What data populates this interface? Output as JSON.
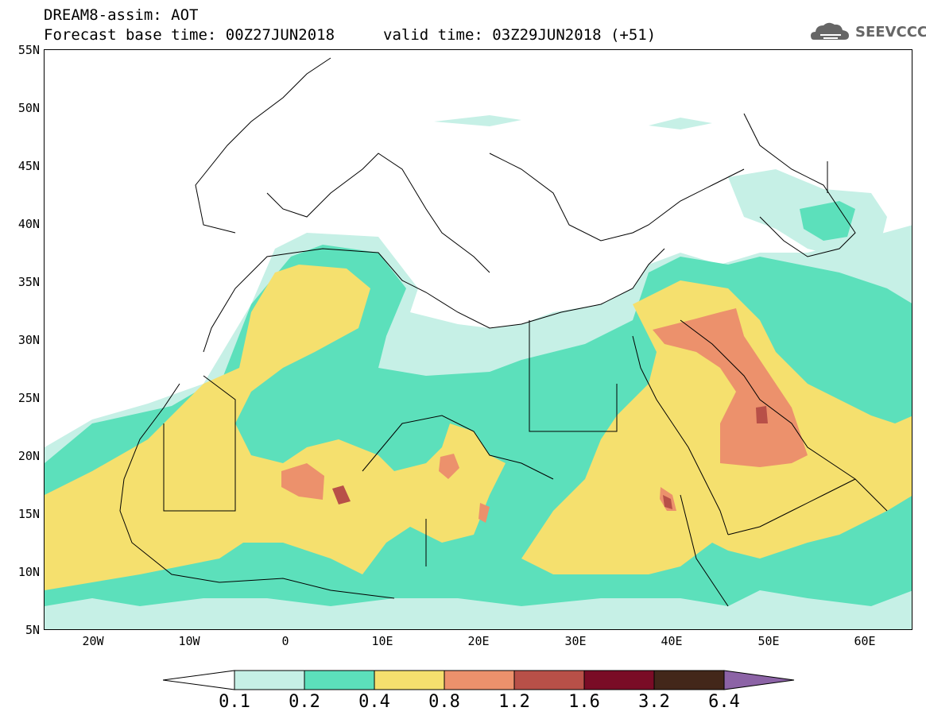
{
  "header": {
    "line1": "DREAM8-assim: AOT",
    "line2": "Forecast base time: 00Z27JUN2018",
    "line3": "valid time: 03Z29JUN2018 (+51)"
  },
  "logo": {
    "text": "SEEVCCC",
    "icon": "cloud-icon"
  },
  "map": {
    "region": "North Africa, Mediterranean and Middle East",
    "lon_range": [
      -25,
      65
    ],
    "lat_range": [
      5,
      55
    ],
    "lat_ticks": [
      "55N",
      "50N",
      "45N",
      "40N",
      "35N",
      "30N",
      "25N",
      "20N",
      "15N",
      "10N",
      "5N"
    ],
    "lon_ticks": [
      "20W",
      "10W",
      "0",
      "10E",
      "20E",
      "30E",
      "40E",
      "50E",
      "60E"
    ]
  },
  "colorbar": {
    "labels": [
      "0.1",
      "0.2",
      "0.4",
      "0.8",
      "1.2",
      "1.6",
      "3.2",
      "6.4"
    ],
    "colors": [
      "#ffffff",
      "#c6f0e6",
      "#5ce0bb",
      "#f5e06e",
      "#ec916c",
      "#b85048",
      "#7a0c26",
      "#43271a",
      "#8c63a6"
    ]
  },
  "colors": {
    "aot_0_1": "#c6f0e6",
    "aot_0_2": "#5ce0bb",
    "aot_0_4": "#f5e06e",
    "aot_0_8": "#ec916c",
    "aot_1_2": "#b85048",
    "aot_1_6": "#7a0c26"
  }
}
